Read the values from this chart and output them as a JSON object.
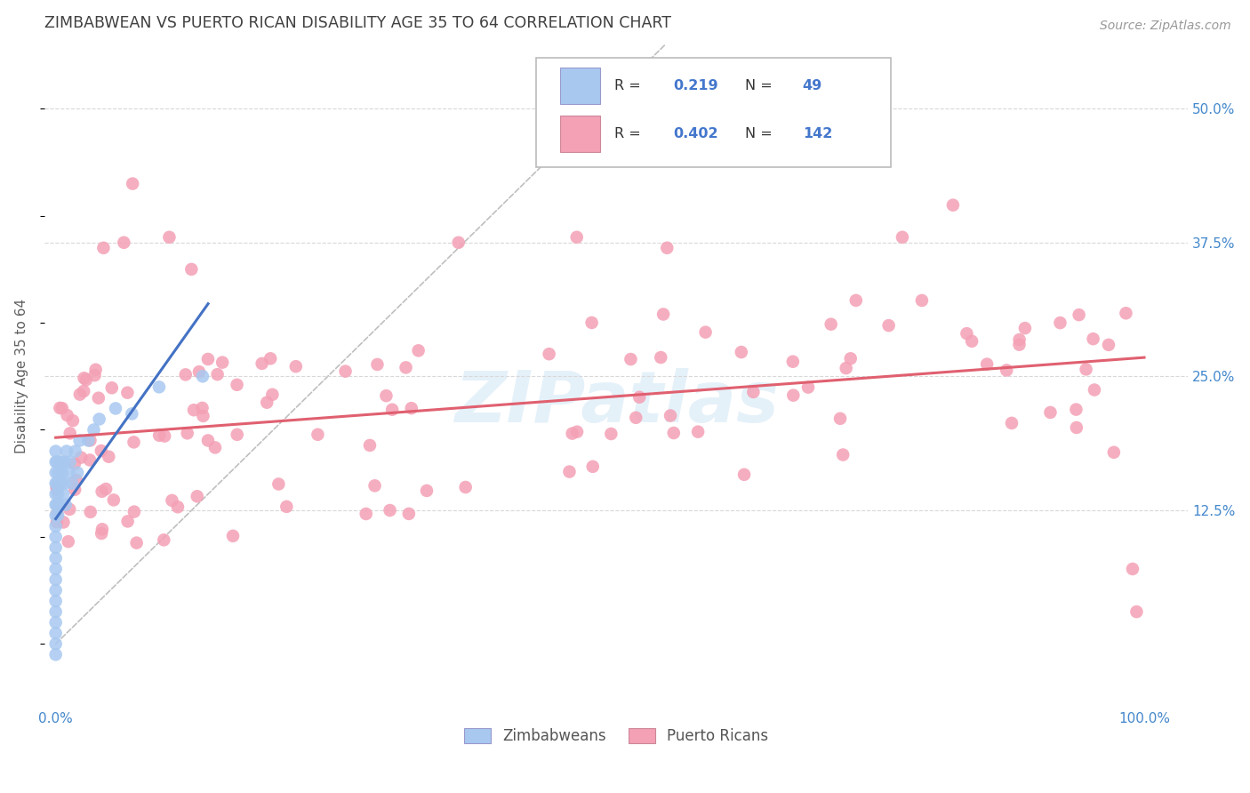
{
  "title": "ZIMBABWEAN VS PUERTO RICAN DISABILITY AGE 35 TO 64 CORRELATION CHART",
  "source": "Source: ZipAtlas.com",
  "ylabel": "Disability Age 35 to 64",
  "xlim": [
    -0.01,
    1.04
  ],
  "ylim": [
    -0.06,
    0.56
  ],
  "yticks": [
    0.125,
    0.25,
    0.375,
    0.5
  ],
  "yticklabels": [
    "12.5%",
    "25.0%",
    "37.5%",
    "50.0%"
  ],
  "legend_r_zim": "0.219",
  "legend_n_zim": "49",
  "legend_r_pr": "0.402",
  "legend_n_pr": "142",
  "color_zim": "#a8c8f0",
  "color_pr": "#f4a0b5",
  "line_color_zim": "#4472c4",
  "line_color_pr": "#e06070",
  "diagonal_color": "#b8b8b8",
  "background_color": "#ffffff",
  "grid_color": "#d8d8d8",
  "title_color": "#404040",
  "axis_label_color": "#606060",
  "tick_color": "#4488cc",
  "watermark_color": "#cce4f5",
  "watermark_alpha": 0.5
}
